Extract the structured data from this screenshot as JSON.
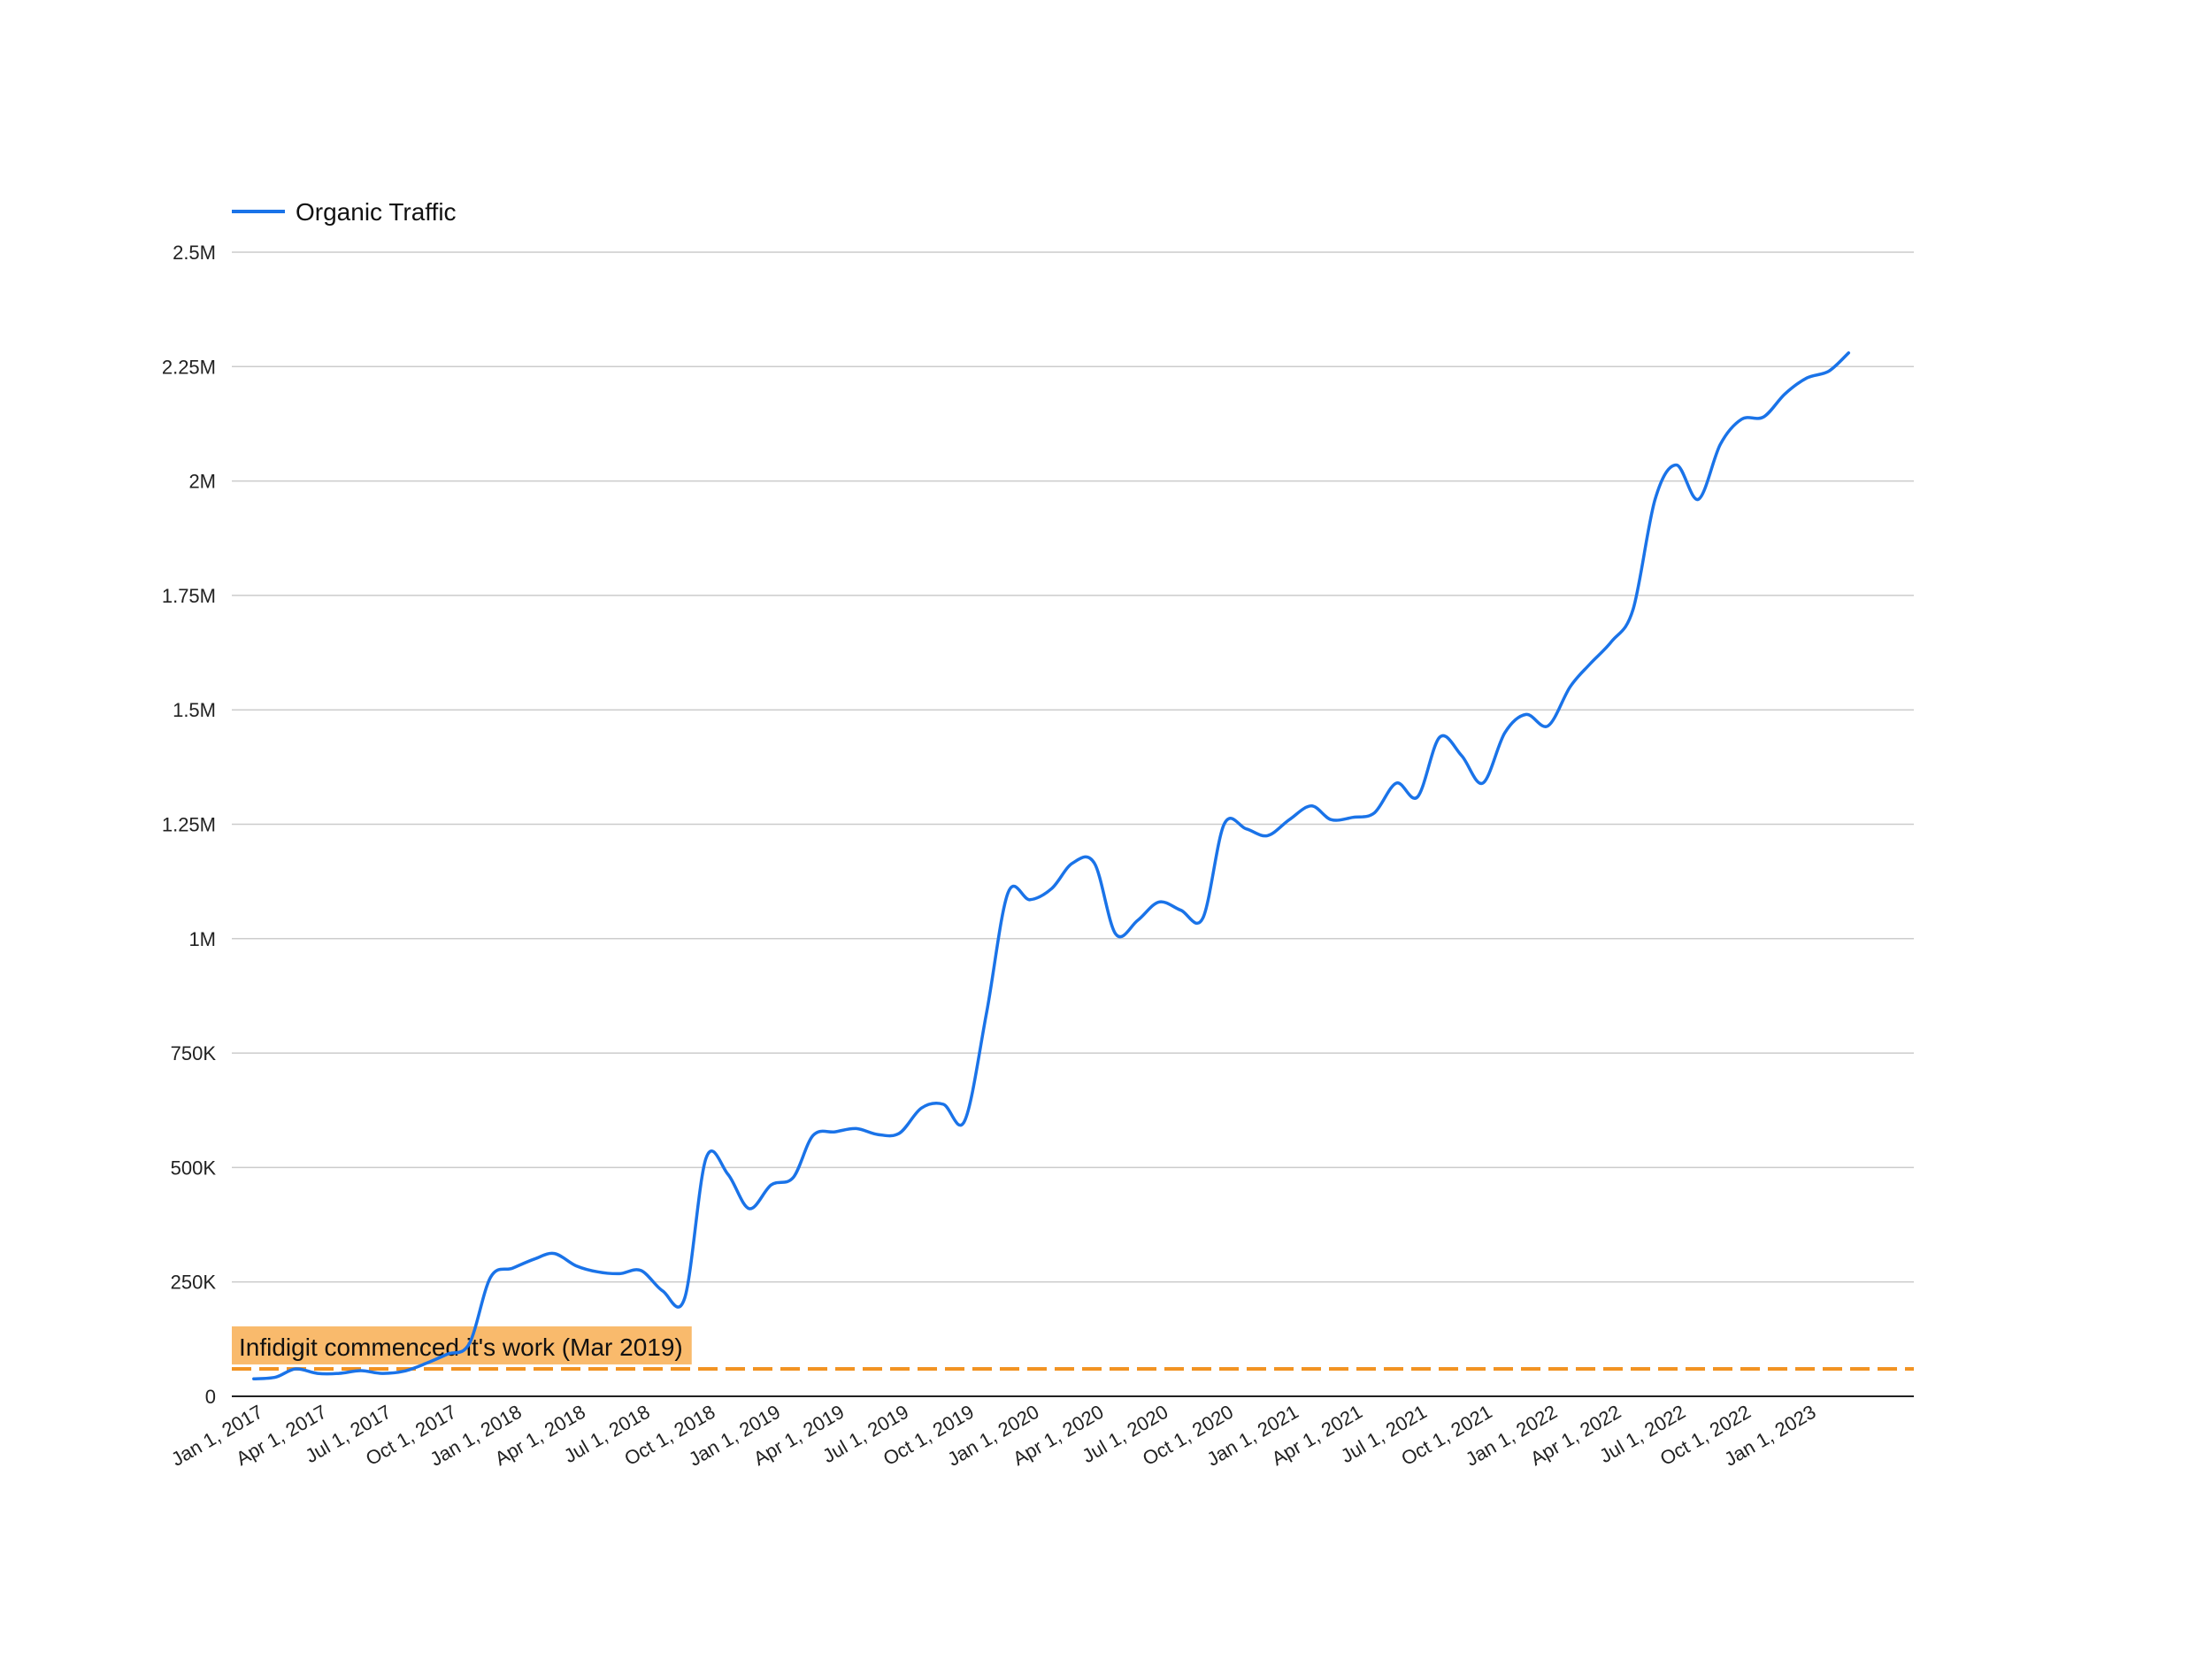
{
  "chart_data": {
    "type": "line",
    "legend_position": "top-left",
    "grid": true,
    "ylim": [
      0,
      2500000
    ],
    "xlim": [
      "2016-12-01",
      "2023-06-01"
    ],
    "y_ticks": [
      {
        "value": 0,
        "label": "0"
      },
      {
        "value": 250000,
        "label": "250K"
      },
      {
        "value": 500000,
        "label": "500K"
      },
      {
        "value": 750000,
        "label": "750K"
      },
      {
        "value": 1000000,
        "label": "1M"
      },
      {
        "value": 1250000,
        "label": "1.25M"
      },
      {
        "value": 1500000,
        "label": "1.5M"
      },
      {
        "value": 1750000,
        "label": "1.75M"
      },
      {
        "value": 2000000,
        "label": "2M"
      },
      {
        "value": 2250000,
        "label": "2.25M"
      },
      {
        "value": 2500000,
        "label": "2.5M"
      }
    ],
    "x_ticks": [
      {
        "date": "2017-01-01",
        "label": "Jan 1, 2017"
      },
      {
        "date": "2017-04-01",
        "label": "Apr 1, 2017"
      },
      {
        "date": "2017-07-01",
        "label": "Jul 1, 2017"
      },
      {
        "date": "2017-10-01",
        "label": "Oct 1, 2017"
      },
      {
        "date": "2018-01-01",
        "label": "Jan 1, 2018"
      },
      {
        "date": "2018-04-01",
        "label": "Apr 1, 2018"
      },
      {
        "date": "2018-07-01",
        "label": "Jul 1, 2018"
      },
      {
        "date": "2018-10-01",
        "label": "Oct 1, 2018"
      },
      {
        "date": "2019-01-01",
        "label": "Jan 1, 2019"
      },
      {
        "date": "2019-04-01",
        "label": "Apr 1, 2019"
      },
      {
        "date": "2019-07-01",
        "label": "Jul 1, 2019"
      },
      {
        "date": "2019-10-01",
        "label": "Oct 1, 2019"
      },
      {
        "date": "2020-01-01",
        "label": "Jan 1, 2020"
      },
      {
        "date": "2020-04-01",
        "label": "Apr 1, 2020"
      },
      {
        "date": "2020-07-01",
        "label": "Jul 1, 2020"
      },
      {
        "date": "2020-10-01",
        "label": "Oct 1, 2020"
      },
      {
        "date": "2021-01-01",
        "label": "Jan 1, 2021"
      },
      {
        "date": "2021-04-01",
        "label": "Apr 1, 2021"
      },
      {
        "date": "2021-07-01",
        "label": "Jul 1, 2021"
      },
      {
        "date": "2021-10-01",
        "label": "Oct 1, 2021"
      },
      {
        "date": "2022-01-01",
        "label": "Jan 1, 2022"
      },
      {
        "date": "2022-04-01",
        "label": "Apr 1, 2022"
      },
      {
        "date": "2022-07-01",
        "label": "Jul 1, 2022"
      },
      {
        "date": "2022-10-01",
        "label": "Oct 1, 2022"
      },
      {
        "date": "2023-01-01",
        "label": "Jan 1, 2023"
      }
    ],
    "series": [
      {
        "name": "Organic Traffic",
        "color": "#1a73e8",
        "points": [
          {
            "x": "2017-01-01",
            "y": 38000
          },
          {
            "x": "2017-02-01",
            "y": 42000
          },
          {
            "x": "2017-03-01",
            "y": 60000
          },
          {
            "x": "2017-04-01",
            "y": 50000
          },
          {
            "x": "2017-05-01",
            "y": 50000
          },
          {
            "x": "2017-06-01",
            "y": 56000
          },
          {
            "x": "2017-07-01",
            "y": 50000
          },
          {
            "x": "2017-08-01",
            "y": 55000
          },
          {
            "x": "2017-09-01",
            "y": 72000
          },
          {
            "x": "2017-10-01",
            "y": 92000
          },
          {
            "x": "2017-11-01",
            "y": 115000
          },
          {
            "x": "2017-12-01",
            "y": 260000
          },
          {
            "x": "2018-01-01",
            "y": 280000
          },
          {
            "x": "2018-02-01",
            "y": 300000
          },
          {
            "x": "2018-03-01",
            "y": 312000
          },
          {
            "x": "2018-04-01",
            "y": 285000
          },
          {
            "x": "2018-05-01",
            "y": 272000
          },
          {
            "x": "2018-06-01",
            "y": 268000
          },
          {
            "x": "2018-07-01",
            "y": 275000
          },
          {
            "x": "2018-08-01",
            "y": 230000
          },
          {
            "x": "2018-09-01",
            "y": 215000
          },
          {
            "x": "2018-10-01",
            "y": 520000
          },
          {
            "x": "2018-11-01",
            "y": 485000
          },
          {
            "x": "2018-12-01",
            "y": 410000
          },
          {
            "x": "2019-01-01",
            "y": 462000
          },
          {
            "x": "2019-02-01",
            "y": 478000
          },
          {
            "x": "2019-03-01",
            "y": 570000
          },
          {
            "x": "2019-04-01",
            "y": 578000
          },
          {
            "x": "2019-05-01",
            "y": 585000
          },
          {
            "x": "2019-06-01",
            "y": 572000
          },
          {
            "x": "2019-07-01",
            "y": 575000
          },
          {
            "x": "2019-08-01",
            "y": 630000
          },
          {
            "x": "2019-09-01",
            "y": 638000
          },
          {
            "x": "2019-10-01",
            "y": 602000
          },
          {
            "x": "2019-11-01",
            "y": 840000
          },
          {
            "x": "2019-12-01",
            "y": 1100000
          },
          {
            "x": "2020-01-01",
            "y": 1085000
          },
          {
            "x": "2020-02-01",
            "y": 1110000
          },
          {
            "x": "2020-03-01",
            "y": 1165000
          },
          {
            "x": "2020-04-01",
            "y": 1165000
          },
          {
            "x": "2020-05-01",
            "y": 1010000
          },
          {
            "x": "2020-06-01",
            "y": 1040000
          },
          {
            "x": "2020-07-01",
            "y": 1080000
          },
          {
            "x": "2020-08-01",
            "y": 1062000
          },
          {
            "x": "2020-09-01",
            "y": 1045000
          },
          {
            "x": "2020-10-01",
            "y": 1250000
          },
          {
            "x": "2020-11-01",
            "y": 1240000
          },
          {
            "x": "2020-12-01",
            "y": 1225000
          },
          {
            "x": "2021-01-01",
            "y": 1260000
          },
          {
            "x": "2021-02-01",
            "y": 1290000
          },
          {
            "x": "2021-03-01",
            "y": 1260000
          },
          {
            "x": "2021-04-01",
            "y": 1265000
          },
          {
            "x": "2021-05-01",
            "y": 1275000
          },
          {
            "x": "2021-06-01",
            "y": 1340000
          },
          {
            "x": "2021-07-01",
            "y": 1310000
          },
          {
            "x": "2021-08-01",
            "y": 1440000
          },
          {
            "x": "2021-09-01",
            "y": 1400000
          },
          {
            "x": "2021-10-01",
            "y": 1340000
          },
          {
            "x": "2021-11-01",
            "y": 1450000
          },
          {
            "x": "2021-12-01",
            "y": 1490000
          },
          {
            "x": "2022-01-01",
            "y": 1465000
          },
          {
            "x": "2022-02-01",
            "y": 1550000
          },
          {
            "x": "2022-03-01",
            "y": 1600000
          },
          {
            "x": "2022-04-01",
            "y": 1650000
          },
          {
            "x": "2022-05-01",
            "y": 1720000
          },
          {
            "x": "2022-06-01",
            "y": 1960000
          },
          {
            "x": "2022-07-01",
            "y": 2035000
          },
          {
            "x": "2022-08-01",
            "y": 1960000
          },
          {
            "x": "2022-09-01",
            "y": 2080000
          },
          {
            "x": "2022-10-01",
            "y": 2135000
          },
          {
            "x": "2022-11-01",
            "y": 2140000
          },
          {
            "x": "2022-12-01",
            "y": 2190000
          },
          {
            "x": "2023-01-01",
            "y": 2225000
          },
          {
            "x": "2023-02-01",
            "y": 2240000
          },
          {
            "x": "2023-03-01",
            "y": 2280000
          }
        ]
      }
    ],
    "reference_line": {
      "y": 60000,
      "color": "#f29322",
      "label": "Infidigit commenced it's work (Mar 2019)",
      "label_background": "#f9ba6c"
    }
  }
}
